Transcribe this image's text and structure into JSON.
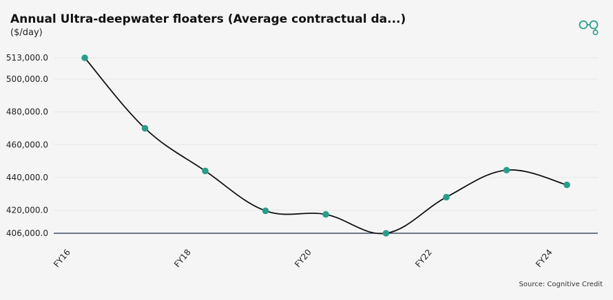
{
  "title": "Annual Ultra-deepwater floaters (Average contractual da...)",
  "subtitle": "($/day)",
  "source": "Source: Cognitive Credit",
  "logo_icon": "cognitive-credit-logo-icon",
  "colors": {
    "background": "#f5f5f5",
    "line": "#111111",
    "point": "#2a9d8a",
    "baseline": "#1c2b4a",
    "grid": "#e6e6e6",
    "logo": "#2a9d8a"
  },
  "chart_data": {
    "type": "line",
    "x": [
      "FY16",
      "FY17",
      "FY18",
      "FY19",
      "FY20",
      "FY21",
      "FY22",
      "FY23",
      "FY24"
    ],
    "series": [
      {
        "values": [
          513000,
          470000,
          444000,
          419700,
          417500,
          406000,
          428000,
          444500,
          435500
        ]
      }
    ],
    "x_tick_labels": [
      "FY16",
      "FY18",
      "FY20",
      "FY22",
      "FY24"
    ],
    "y_tick_labels": [
      "513,000.0",
      "500,000.0",
      "480,000.0",
      "460,000.0",
      "440,000.0",
      "420,000.0",
      "406,000.0"
    ],
    "y_ticks": [
      513000,
      500000,
      480000,
      460000,
      440000,
      420000,
      406000
    ],
    "ylim": [
      406000,
      513000
    ],
    "grid": true,
    "legend": "none",
    "smooth": true
  }
}
